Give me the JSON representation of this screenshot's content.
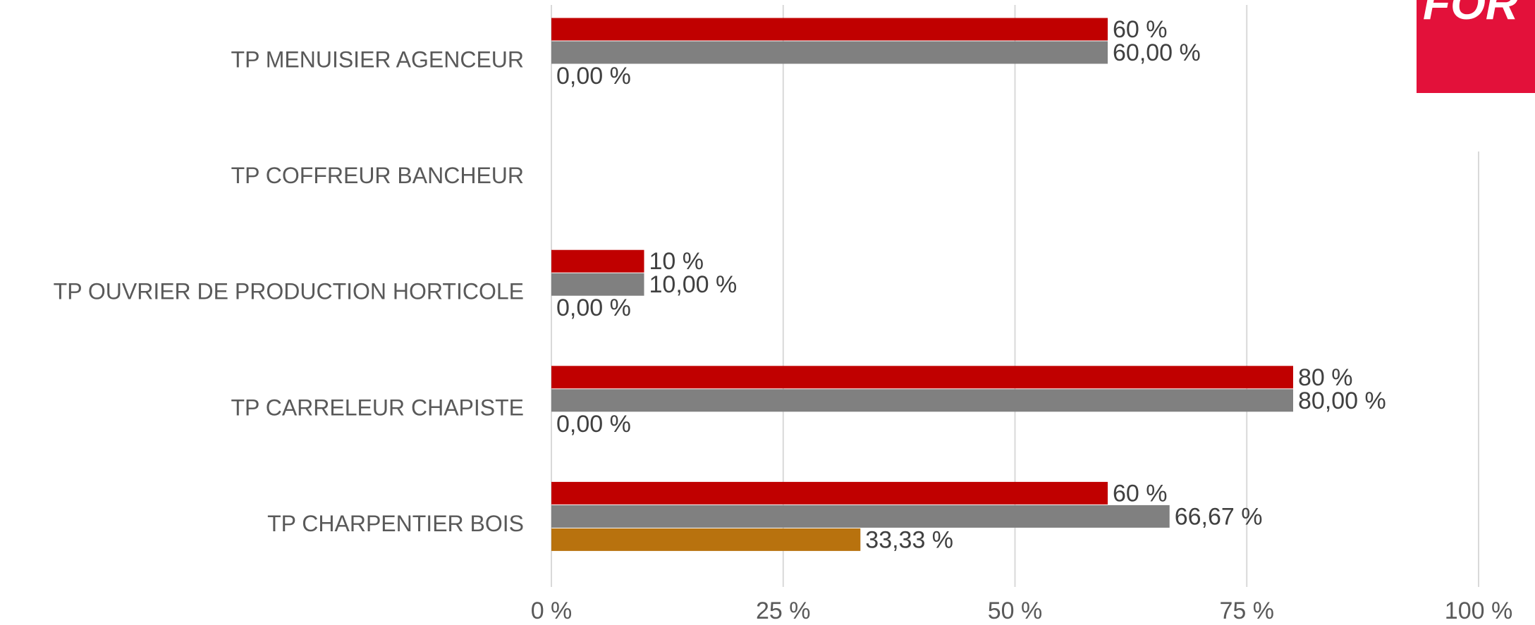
{
  "chart_data": {
    "type": "hbar",
    "categories": [
      "TP MENUISIER AGENCEUR",
      "TP COFFREUR BANCHEUR",
      "TP OUVRIER DE PRODUCTION HORTICOLE",
      "TP CARRELEUR CHAPISTE",
      "TP CHARPENTIER BOIS"
    ],
    "series": [
      {
        "color": "#c00000",
        "values": [
          60,
          null,
          10,
          80,
          60
        ],
        "value_labels": [
          "60 %",
          null,
          "10 %",
          "80 %",
          "60 %"
        ]
      },
      {
        "color": "#808080",
        "values": [
          60,
          null,
          10,
          80,
          66.67
        ],
        "value_labels": [
          "60,00 %",
          null,
          "10,00 %",
          "80,00 %",
          "66,67 %"
        ]
      },
      {
        "color": "#b8720e",
        "values": [
          0,
          null,
          0,
          0,
          33.33
        ],
        "value_labels": [
          "0,00 %",
          null,
          "0,00 %",
          "0,00 %",
          "33,33 %"
        ]
      }
    ],
    "xlim": [
      0,
      100
    ],
    "xticks": [
      {
        "value": 0,
        "label": "0 %"
      },
      {
        "value": 25,
        "label": "25 %"
      },
      {
        "value": 50,
        "label": "50 %"
      },
      {
        "value": 75,
        "label": "75 %"
      },
      {
        "value": 100,
        "label": "100 %"
      }
    ],
    "grid": true
  },
  "logo_text": "FOR"
}
